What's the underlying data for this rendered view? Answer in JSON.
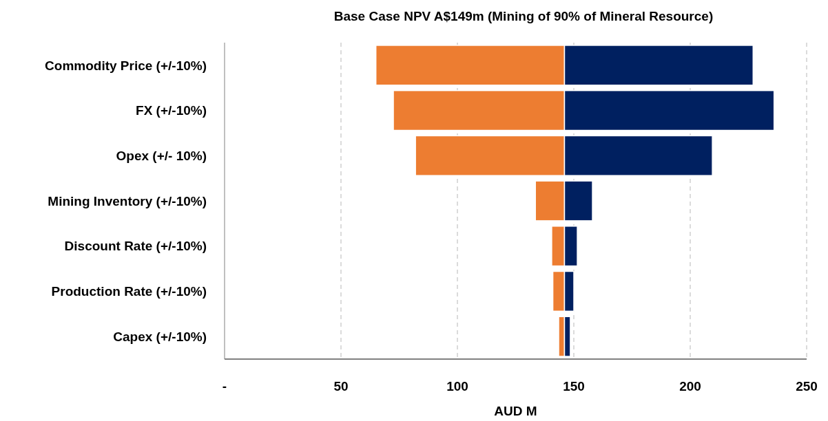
{
  "chart_data": {
    "type": "bar",
    "orientation": "horizontal",
    "title": "Base Case NPV A$149m (Mining of 90% of Mineral Resource)",
    "xlabel": "AUD M",
    "categories": [
      "Commodity Price (+/-10%)",
      "FX (+/-10%)",
      "Opex (+/- 10%)",
      "Mining Inventory (+/-10%)",
      "Discount Rate (+/-10%)",
      "Production Rate (+/-10%)",
      "Capex (+/-10%)"
    ],
    "series": [
      {
        "color": "#ed7d31",
        "base": [
          65,
          72.5,
          82,
          133.5,
          140.5,
          141,
          143.5
        ],
        "values": [
          81,
          73.5,
          64,
          12.5,
          5.5,
          5,
          2.5
        ]
      },
      {
        "color": "#002060",
        "base": [
          146,
          146,
          146,
          146,
          146,
          146,
          146
        ],
        "values": [
          81,
          90,
          63.5,
          12,
          5.5,
          4,
          2.5
        ]
      }
    ],
    "xlim": [
      0,
      250
    ],
    "xticks": [
      {
        "value": 0,
        "label": "-"
      },
      50,
      100,
      150,
      200,
      250
    ],
    "grid": "x"
  }
}
